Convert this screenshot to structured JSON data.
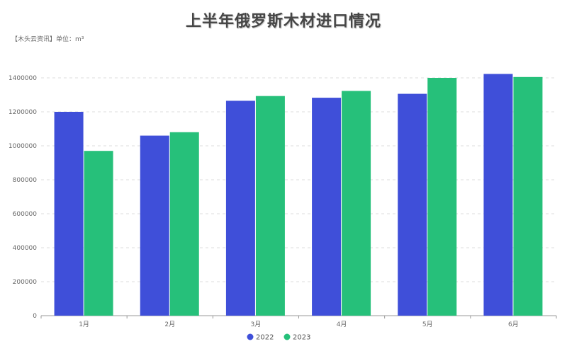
{
  "chart_data": {
    "type": "bar",
    "title": "上半年俄罗斯木材进口情况",
    "subtitle": "【木头云资讯】单位：m³",
    "categories": [
      "1月",
      "2月",
      "3月",
      "4月",
      "5月",
      "6月"
    ],
    "series": [
      {
        "name": "2022",
        "color": "#3f4fd9",
        "values": [
          1200000,
          1060000,
          1265000,
          1283000,
          1306000,
          1423000
        ]
      },
      {
        "name": "2023",
        "color": "#26c07a",
        "values": [
          970000,
          1080000,
          1293000,
          1323000,
          1400000,
          1405000
        ]
      }
    ],
    "y_ticks": [
      "0",
      "200000",
      "400000",
      "600000",
      "800000",
      "1000000",
      "1200000",
      "1400000"
    ],
    "ylim": [
      0,
      1400000
    ],
    "grid": true,
    "legend_position": "bottom-center"
  }
}
